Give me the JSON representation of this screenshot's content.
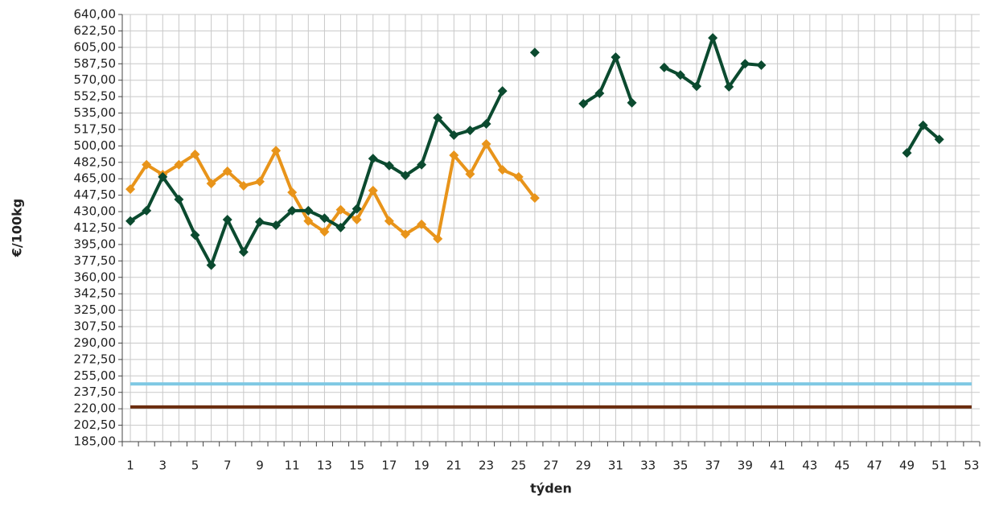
{
  "chart_data": {
    "type": "line",
    "x_label": "týden",
    "y_label": "€/100kg",
    "categories": [
      1,
      null,
      3,
      null,
      5,
      null,
      7,
      null,
      9,
      null,
      11,
      null,
      13,
      null,
      15,
      null,
      17,
      null,
      19,
      null,
      21,
      null,
      23,
      null,
      25,
      null,
      27,
      null,
      29,
      null,
      31,
      null,
      33,
      null,
      35,
      null,
      37,
      null,
      39,
      null,
      41,
      null,
      43,
      null,
      45,
      null,
      47,
      null,
      49,
      null,
      51,
      null,
      53
    ],
    "series": [
      {
        "color": "#7ec8e3",
        "markers": false,
        "values": [
          246.5,
          246.5,
          246.5,
          246.5,
          246.5,
          246.5,
          246.5,
          246.5,
          246.5,
          246.5,
          246.5,
          246.5,
          246.5,
          246.5,
          246.5,
          246.5,
          246.5,
          246.5,
          246.5,
          246.5,
          246.5,
          246.5,
          246.5,
          246.5,
          246.5,
          246.5,
          246.5,
          246.5,
          246.5,
          246.5,
          246.5,
          246.5,
          246.5,
          246.5,
          246.5,
          246.5,
          246.5,
          246.5,
          246.5,
          246.5,
          246.5,
          246.5,
          246.5,
          246.5,
          246.5,
          246.5,
          246.5,
          246.5,
          246.5,
          246.5,
          246.5,
          246.5,
          246.5
        ]
      },
      {
        "color": "#6b2c0e",
        "markers": false,
        "values": [
          222,
          222,
          222,
          222,
          222,
          222,
          222,
          222,
          222,
          222,
          222,
          222,
          222,
          222,
          222,
          222,
          222,
          222,
          222,
          222,
          222,
          222,
          222,
          222,
          222,
          222,
          222,
          222,
          222,
          222,
          222,
          222,
          222,
          222,
          222,
          222,
          222,
          222,
          222,
          222,
          222,
          222,
          222,
          222,
          222,
          222,
          222,
          222,
          222,
          222,
          222,
          222,
          222
        ]
      },
      {
        "color": "#e8941a",
        "markers": true,
        "values": [
          454,
          480,
          469.5,
          480,
          491,
          460,
          473,
          457.5,
          462,
          495,
          450.5,
          420,
          408.5,
          432,
          421.5,
          452.5,
          420,
          406,
          416.5,
          401,
          490,
          470,
          502,
          474.5,
          467,
          444.5,
          null,
          null,
          null,
          null,
          null,
          null,
          null,
          null,
          null,
          null,
          null,
          null,
          null,
          null,
          null,
          null,
          null,
          null,
          null,
          null,
          null,
          null,
          null,
          null,
          null,
          null,
          null
        ]
      },
      {
        "color": "#0b4a2f",
        "markers": true,
        "values": [
          420,
          431,
          467,
          443,
          405,
          373,
          421.5,
          387,
          419,
          415.5,
          431,
          431,
          423,
          413,
          433,
          486.5,
          479,
          468.5,
          480,
          530,
          511.5,
          516.5,
          523.5,
          558.5,
          null,
          599.5,
          null,
          null,
          545,
          556,
          594.5,
          546,
          null,
          583.5,
          575.5,
          563.5,
          615,
          563,
          587.5,
          586,
          null,
          null,
          null,
          null,
          null,
          null,
          null,
          null,
          492.5,
          522,
          507,
          null,
          null
        ]
      }
    ],
    "ylim": [
      185,
      640
    ],
    "yticks": [
      {
        "value": 185,
        "label": "185,00"
      },
      {
        "value": 202.5,
        "label": "202,50"
      },
      {
        "value": 220,
        "label": "220,00"
      },
      {
        "value": 237.5,
        "label": "237,50"
      },
      {
        "value": 255,
        "label": "255,00"
      },
      {
        "value": 272.5,
        "label": "272,50"
      },
      {
        "value": 290,
        "label": "290,00"
      },
      {
        "value": 307.5,
        "label": "307,50"
      },
      {
        "value": 325,
        "label": "325,00"
      },
      {
        "value": 342.5,
        "label": "342,50"
      },
      {
        "value": 360,
        "label": "360,00"
      },
      {
        "value": 377.5,
        "label": "377,50"
      },
      {
        "value": 395,
        "label": "395,00"
      },
      {
        "value": 412.5,
        "label": "412,50"
      },
      {
        "value": 430,
        "label": "430,00"
      },
      {
        "value": 447.5,
        "label": "447,50"
      },
      {
        "value": 465,
        "label": "465,00"
      },
      {
        "value": 482.5,
        "label": "482,50"
      },
      {
        "value": 500,
        "label": "500,00"
      },
      {
        "value": 517.5,
        "label": "517,50"
      },
      {
        "value": 535,
        "label": "535,00"
      },
      {
        "value": 552.5,
        "label": "552,50"
      },
      {
        "value": 570,
        "label": "570,00"
      },
      {
        "value": 587.5,
        "label": "587,50"
      },
      {
        "value": 605,
        "label": "605,00"
      },
      {
        "value": 622.5,
        "label": "622,50"
      },
      {
        "value": 640,
        "label": "640,00"
      }
    ],
    "grid": true
  }
}
